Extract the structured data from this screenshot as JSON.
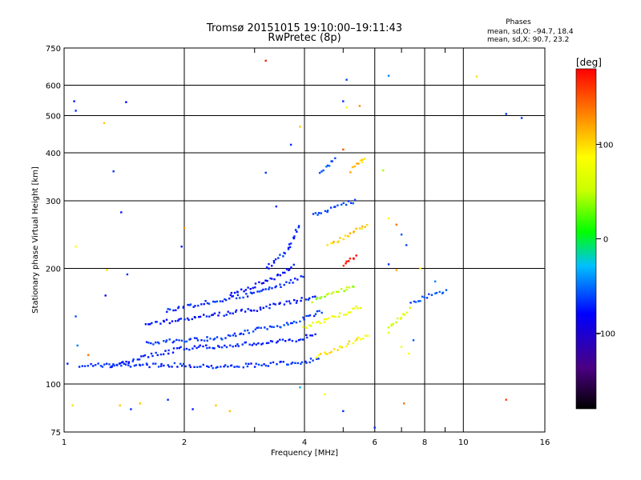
{
  "chart_data": {
    "type": "scatter",
    "title": "Tromsø 20151015 19:10:00–19:11:43",
    "subtitle": "RwPretec (8p)",
    "xlabel": "Frequency [MHz]",
    "ylabel": "Stationary phase Virtual Height [km]",
    "x_scale": "log",
    "y_scale": "log",
    "xlim": [
      1,
      16
    ],
    "ylim": [
      75,
      750
    ],
    "x_ticks": [
      1,
      2,
      4,
      6,
      8,
      10,
      16
    ],
    "x_tick_labels": [
      "1",
      "2",
      "4",
      "6",
      "8",
      "10",
      "16"
    ],
    "x_minor_ticks": [
      3,
      5,
      7,
      9
    ],
    "y_ticks": [
      75,
      100,
      200,
      300,
      400,
      500,
      600,
      750
    ],
    "y_tick_labels": [
      "75",
      "100",
      "200",
      "300",
      "400",
      "500",
      "600",
      "750"
    ],
    "grid": true,
    "phase_stats": {
      "title": "Phases",
      "line_o": "mean, sd,O: –94.7, 18.4",
      "line_x": "mean, sd,X:  90.7, 23.2"
    },
    "colorbar": {
      "label": "[deg]",
      "range": [
        -180,
        180
      ],
      "ticks": [
        100,
        0,
        -100
      ],
      "tick_labels": [
        "100",
        "0",
        "–100"
      ]
    },
    "traces": [
      {
        "x": [
          1.1,
          2.0,
          2.5,
          3.0,
          3.5,
          4.0,
          4.4
        ],
        "y": [
          112,
          112,
          111,
          112,
          113,
          114,
          118
        ],
        "phase": -100
      },
      {
        "x": [
          1.3,
          1.6,
          2.0,
          2.6,
          3.2,
          3.8,
          4.3
        ],
        "y": [
          110,
          118,
          124,
          126,
          128,
          130,
          136
        ],
        "phase": -105
      },
      {
        "x": [
          1.6,
          2.0,
          2.5,
          3.0,
          3.5,
          4.0,
          4.5
        ],
        "y": [
          128,
          130,
          132,
          138,
          142,
          148,
          156
        ],
        "phase": -92
      },
      {
        "x": [
          1.6,
          2.0,
          2.5,
          3.0,
          3.3,
          3.8,
          4.3
        ],
        "y": [
          142,
          148,
          152,
          156,
          160,
          164,
          170
        ],
        "phase": -110
      },
      {
        "x": [
          1.8,
          2.2,
          2.7,
          3.2,
          3.6,
          4.0
        ],
        "y": [
          155,
          162,
          168,
          176,
          182,
          192
        ],
        "phase": -100
      },
      {
        "x": [
          2.6,
          3.0,
          3.4,
          3.8
        ],
        "y": [
          172,
          180,
          190,
          205
        ],
        "phase": -115
      },
      {
        "x": [
          3.2,
          3.6,
          3.9
        ],
        "y": [
          200,
          220,
          260
        ],
        "phase": -105
      },
      {
        "x": [
          4.3,
          4.7,
          5.0,
          5.4,
          5.8
        ],
        "y": [
          118,
          122,
          126,
          130,
          134
        ],
        "phase": 95
      },
      {
        "x": [
          4.0,
          4.4,
          4.8,
          5.2,
          5.6
        ],
        "y": [
          140,
          145,
          150,
          155,
          160
        ],
        "phase": 78
      },
      {
        "x": [
          4.2,
          4.6,
          5.0,
          5.4
        ],
        "y": [
          165,
          170,
          176,
          182
        ],
        "phase": 40
      },
      {
        "x": [
          4.6,
          5.0,
          5.4,
          5.8
        ],
        "y": [
          230,
          240,
          252,
          262
        ],
        "phase": 108
      },
      {
        "x": [
          4.2,
          4.6,
          5.0,
          5.4
        ],
        "y": [
          275,
          285,
          295,
          300
        ],
        "phase": -90
      },
      {
        "x": [
          5.0,
          5.2,
          5.5
        ],
        "y": [
          205,
          210,
          215
        ],
        "phase": 170
      },
      {
        "x": [
          4.4,
          4.6,
          4.8
        ],
        "y": [
          355,
          372,
          388
        ],
        "phase": -85
      },
      {
        "x": [
          5.2,
          5.5,
          5.7
        ],
        "y": [
          360,
          378,
          392
        ],
        "phase": 110
      },
      {
        "x": [
          6.5,
          7.0,
          7.4
        ],
        "y": [
          140,
          150,
          158
        ],
        "phase": 60
      },
      {
        "x": [
          7.4,
          8.0,
          8.6,
          9.2
        ],
        "y": [
          162,
          168,
          172,
          176
        ],
        "phase": -80
      }
    ],
    "points": [
      {
        "x": 1.06,
        "y": 545,
        "phase": -110
      },
      {
        "x": 1.07,
        "y": 515,
        "phase": -100
      },
      {
        "x": 1.43,
        "y": 542,
        "phase": -120
      },
      {
        "x": 1.26,
        "y": 478,
        "phase": 110
      },
      {
        "x": 1.33,
        "y": 358,
        "phase": -100
      },
      {
        "x": 1.39,
        "y": 280,
        "phase": -110
      },
      {
        "x": 1.07,
        "y": 228,
        "phase": 90
      },
      {
        "x": 1.28,
        "y": 198,
        "phase": 100
      },
      {
        "x": 1.44,
        "y": 193,
        "phase": -100
      },
      {
        "x": 1.07,
        "y": 150,
        "phase": -80
      },
      {
        "x": 1.08,
        "y": 126,
        "phase": -60
      },
      {
        "x": 1.02,
        "y": 113,
        "phase": -110
      },
      {
        "x": 1.15,
        "y": 119,
        "phase": 140
      },
      {
        "x": 1.27,
        "y": 170,
        "phase": -120
      },
      {
        "x": 1.97,
        "y": 228,
        "phase": -110
      },
      {
        "x": 2.0,
        "y": 255,
        "phase": 130
      },
      {
        "x": 3.2,
        "y": 695,
        "phase": 170
      },
      {
        "x": 3.2,
        "y": 355,
        "phase": -95
      },
      {
        "x": 3.4,
        "y": 290,
        "phase": -100
      },
      {
        "x": 3.9,
        "y": 468,
        "phase": 110
      },
      {
        "x": 3.7,
        "y": 420,
        "phase": -100
      },
      {
        "x": 5.0,
        "y": 545,
        "phase": -100
      },
      {
        "x": 5.1,
        "y": 525,
        "phase": 90
      },
      {
        "x": 5.1,
        "y": 620,
        "phase": -90
      },
      {
        "x": 5.5,
        "y": 530,
        "phase": 130
      },
      {
        "x": 5.0,
        "y": 408,
        "phase": 150
      },
      {
        "x": 6.3,
        "y": 360,
        "phase": 40
      },
      {
        "x": 6.5,
        "y": 635,
        "phase": -60
      },
      {
        "x": 10.8,
        "y": 632,
        "phase": 100
      },
      {
        "x": 12.8,
        "y": 505,
        "phase": -100
      },
      {
        "x": 14.0,
        "y": 493,
        "phase": -100
      },
      {
        "x": 6.5,
        "y": 270,
        "phase": 90
      },
      {
        "x": 6.8,
        "y": 260,
        "phase": 140
      },
      {
        "x": 7.0,
        "y": 245,
        "phase": -80
      },
      {
        "x": 7.2,
        "y": 230,
        "phase": -90
      },
      {
        "x": 6.5,
        "y": 205,
        "phase": -100
      },
      {
        "x": 6.8,
        "y": 198,
        "phase": 120
      },
      {
        "x": 7.8,
        "y": 200,
        "phase": 90
      },
      {
        "x": 8.5,
        "y": 185,
        "phase": -60
      },
      {
        "x": 7.0,
        "y": 125,
        "phase": 80
      },
      {
        "x": 7.3,
        "y": 120,
        "phase": 90
      },
      {
        "x": 7.5,
        "y": 130,
        "phase": -80
      },
      {
        "x": 6.5,
        "y": 136,
        "phase": 70
      },
      {
        "x": 3.9,
        "y": 98,
        "phase": -40
      },
      {
        "x": 4.5,
        "y": 94,
        "phase": 90
      },
      {
        "x": 5.0,
        "y": 85,
        "phase": -100
      },
      {
        "x": 2.4,
        "y": 88,
        "phase": 110
      },
      {
        "x": 2.1,
        "y": 86,
        "phase": -110
      },
      {
        "x": 2.6,
        "y": 85,
        "phase": 110
      },
      {
        "x": 1.47,
        "y": 86,
        "phase": -100
      },
      {
        "x": 1.55,
        "y": 89,
        "phase": 110
      },
      {
        "x": 1.38,
        "y": 88,
        "phase": 110
      },
      {
        "x": 1.82,
        "y": 91,
        "phase": -100
      },
      {
        "x": 1.05,
        "y": 88,
        "phase": 100
      },
      {
        "x": 6.0,
        "y": 77,
        "phase": -100
      },
      {
        "x": 7.1,
        "y": 89,
        "phase": 140
      },
      {
        "x": 12.8,
        "y": 91,
        "phase": 160
      }
    ]
  }
}
